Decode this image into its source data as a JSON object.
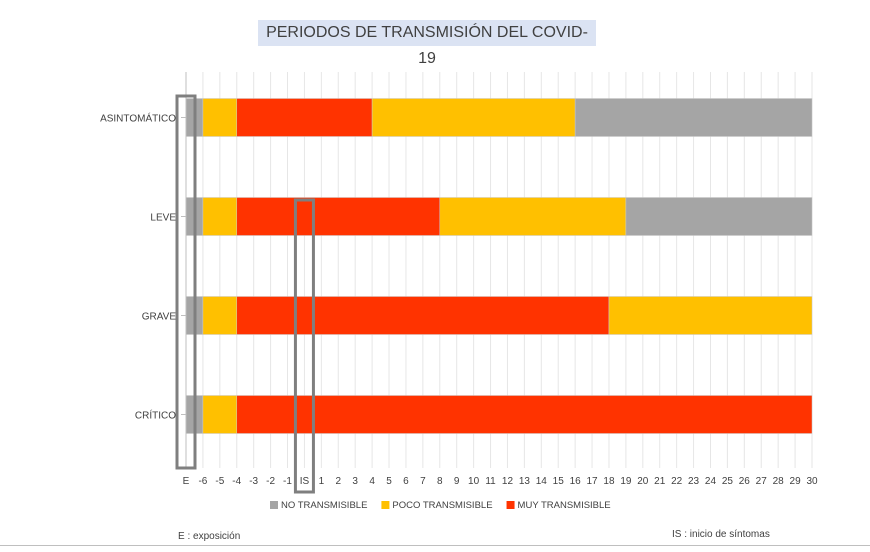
{
  "chart_data": {
    "type": "bar",
    "orientation": "horizontal",
    "stacked": true,
    "title": "PERIODOS DE TRANSMISIÓN DEL COVID-19",
    "categories": [
      "ASINTOMÁTICO",
      "LEVE",
      "GRAVE",
      "CRÍTICO"
    ],
    "x_tick_labels": [
      "E",
      "-6",
      "-5",
      "-4",
      "-3",
      "-2",
      "-1",
      "IS",
      "1",
      "2",
      "3",
      "4",
      "5",
      "6",
      "7",
      "8",
      "9",
      "10",
      "11",
      "12",
      "13",
      "14",
      "15",
      "16",
      "17",
      "18",
      "19",
      "20",
      "21",
      "22",
      "23",
      "24",
      "25",
      "26",
      "27",
      "28",
      "29",
      "30"
    ],
    "series": [
      {
        "name": "NO TRANSMISIBLE",
        "color": "#a5a5a5"
      },
      {
        "name": "POCO TRANSMISIBLE",
        "color": "#ffc000"
      },
      {
        "name": "MUY TRANSMISIBLE",
        "color": "#ff3300"
      }
    ],
    "segments": [
      [
        {
          "series": "NO TRANSMISIBLE",
          "start": "E",
          "end": "-6"
        },
        {
          "series": "POCO TRANSMISIBLE",
          "start": "-6",
          "end": "-4"
        },
        {
          "series": "MUY TRANSMISIBLE",
          "start": "-4",
          "end": "4"
        },
        {
          "series": "POCO TRANSMISIBLE",
          "start": "4",
          "end": "16"
        },
        {
          "series": "NO TRANSMISIBLE",
          "start": "16",
          "end": "30"
        }
      ],
      [
        {
          "series": "NO TRANSMISIBLE",
          "start": "E",
          "end": "-6"
        },
        {
          "series": "POCO TRANSMISIBLE",
          "start": "-6",
          "end": "-4"
        },
        {
          "series": "MUY TRANSMISIBLE",
          "start": "-4",
          "end": "8"
        },
        {
          "series": "POCO TRANSMISIBLE",
          "start": "8",
          "end": "19"
        },
        {
          "series": "NO TRANSMISIBLE",
          "start": "19",
          "end": "30"
        }
      ],
      [
        {
          "series": "NO TRANSMISIBLE",
          "start": "E",
          "end": "-6"
        },
        {
          "series": "POCO TRANSMISIBLE",
          "start": "-6",
          "end": "-4"
        },
        {
          "series": "MUY TRANSMISIBLE",
          "start": "-4",
          "end": "18"
        },
        {
          "series": "POCO TRANSMISIBLE",
          "start": "18",
          "end": "30"
        }
      ],
      [
        {
          "series": "NO TRANSMISIBLE",
          "start": "E",
          "end": "-6"
        },
        {
          "series": "POCO TRANSMISIBLE",
          "start": "-6",
          "end": "-4"
        },
        {
          "series": "MUY TRANSMISIBLE",
          "start": "-4",
          "end": "30"
        }
      ]
    ],
    "highlighted_ticks": [
      "E",
      "IS"
    ],
    "grid": true,
    "legend_position": "bottom"
  },
  "notes": {
    "left": "E : exposición",
    "right": "IS : inicio de síntomas"
  }
}
